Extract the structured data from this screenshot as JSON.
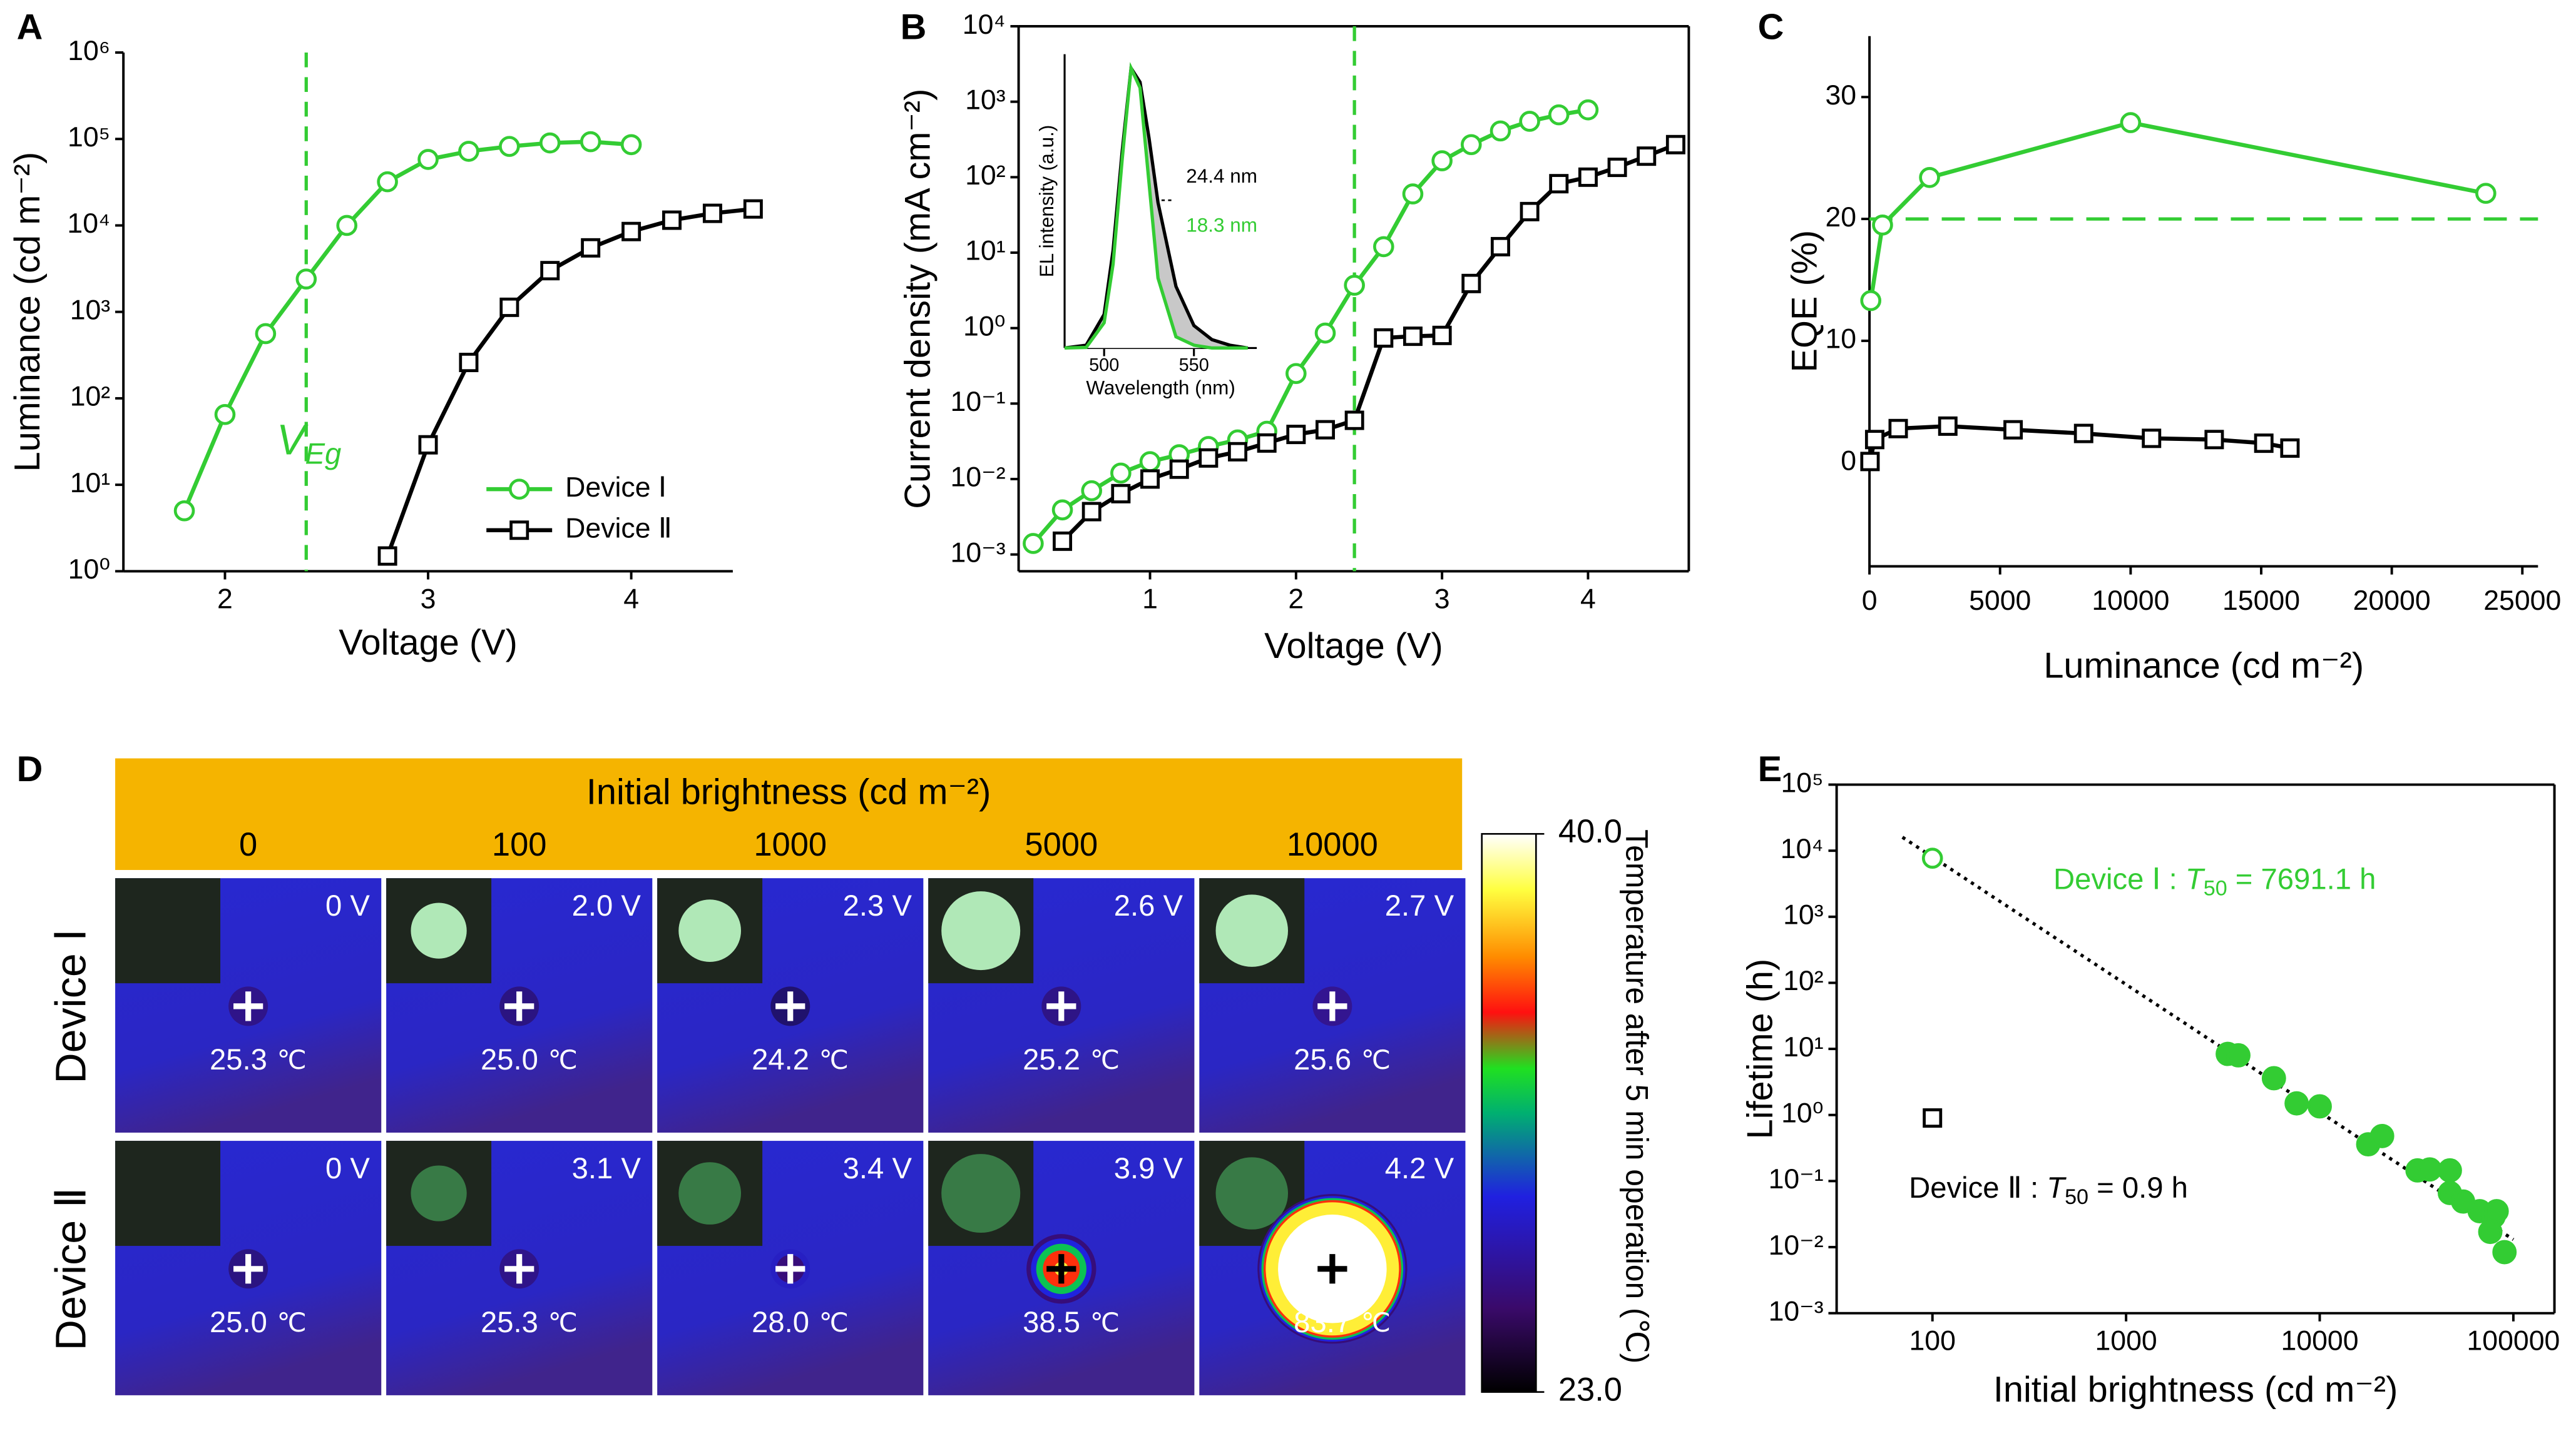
{
  "chart_data": [
    {
      "type": "line",
      "panel_label": "A",
      "xlabel": "Voltage (V)",
      "ylabel": "Luminance (cd m⁻²)",
      "xlim": [
        1.5,
        4.5
      ],
      "ylim": [
        1,
        1000000
      ],
      "ylog": true,
      "frame": false,
      "legend": "lower right",
      "xticks": [
        2,
        3,
        4
      ],
      "yticks": [
        {
          "value": 1,
          "label": "10⁰"
        },
        {
          "value": 10,
          "label": "10¹"
        },
        {
          "value": 100,
          "label": "10²"
        },
        {
          "value": 1000,
          "label": "10³"
        },
        {
          "value": 10000,
          "label": "10⁴"
        },
        {
          "value": 100000,
          "label": "10⁵"
        },
        {
          "value": 1000000,
          "label": "10⁶"
        }
      ],
      "reference_lines": [
        {
          "axis": "x",
          "value": 2.4,
          "color": "#33cc33",
          "label": "V",
          "label_sub": "Eg"
        }
      ],
      "series": [
        {
          "name": "Device Ⅰ",
          "color": "#33cc33",
          "marker": "circle",
          "x": [
            1.8,
            2.0,
            2.2,
            2.4,
            2.6,
            2.8,
            3.0,
            3.2,
            3.4,
            3.6,
            3.8,
            4.0
          ],
          "values": [
            5,
            65,
            560,
            2400,
            10000,
            32000,
            58000,
            72000,
            82000,
            90000,
            93000,
            86000
          ]
        },
        {
          "name": "Device Ⅱ",
          "color": "#000000",
          "marker": "square",
          "x": [
            2.8,
            3.0,
            3.2,
            3.4,
            3.6,
            3.8,
            4.0,
            4.2,
            4.4,
            4.6
          ],
          "values": [
            1.5,
            29,
            260,
            1130,
            3000,
            5500,
            8500,
            11500,
            13800,
            15500
          ]
        }
      ]
    },
    {
      "type": "line",
      "panel_label": "B",
      "xlabel": "Voltage (V)",
      "ylabel": "Current density (mA cm⁻²)",
      "xlim": [
        0.1,
        4.69
      ],
      "ylim": [
        0.0006,
        10000
      ],
      "ylog": true,
      "frame": true,
      "xticks": [
        1,
        2,
        3,
        4
      ],
      "yticks": [
        {
          "value": 0.001,
          "label": "10⁻³"
        },
        {
          "value": 0.01,
          "label": "10⁻²"
        },
        {
          "value": 0.1,
          "label": "10⁻¹"
        },
        {
          "value": 1,
          "label": "10⁰"
        },
        {
          "value": 10,
          "label": "10¹"
        },
        {
          "value": 100,
          "label": "10²"
        },
        {
          "value": 1000,
          "label": "10³"
        },
        {
          "value": 10000,
          "label": "10⁴"
        }
      ],
      "reference_lines": [
        {
          "axis": "x",
          "value": 2.4,
          "color": "#33cc33"
        }
      ],
      "series": [
        {
          "color": "#33cc33",
          "marker": "circle",
          "x": [
            0.2,
            0.4,
            0.6,
            0.8,
            1.0,
            1.2,
            1.4,
            1.6,
            1.8,
            2.0,
            2.2,
            2.4,
            2.6,
            2.8,
            3.0,
            3.2,
            3.4,
            3.6,
            3.8,
            4.0
          ],
          "values": [
            0.0014,
            0.0039,
            0.007,
            0.012,
            0.017,
            0.021,
            0.027,
            0.033,
            0.043,
            0.25,
            0.86,
            3.7,
            12,
            60,
            165,
            270,
            410,
            550,
            670,
            780
          ]
        },
        {
          "color": "#000000",
          "marker": "square",
          "x": [
            0.4,
            0.6,
            0.8,
            1.0,
            1.2,
            1.4,
            1.6,
            1.8,
            2.0,
            2.2,
            2.4,
            2.6,
            2.8,
            3.0,
            3.2,
            3.4,
            3.6,
            3.8,
            4.0,
            4.2,
            4.4,
            4.6
          ],
          "values": [
            0.0015,
            0.0037,
            0.0064,
            0.01,
            0.0135,
            0.019,
            0.023,
            0.03,
            0.039,
            0.045,
            0.06,
            0.74,
            0.78,
            0.8,
            3.9,
            12,
            35,
            82,
            100,
            135,
            190,
            270
          ]
        }
      ]
    },
    {
      "type": "spectrum",
      "xlabel": "Wavelength (nm)",
      "ylabel": "EL intensity (a.u.)",
      "xlim": [
        478,
        585
      ],
      "ylim": [
        0,
        1.05
      ],
      "frame": false,
      "xticks": [
        500,
        550
      ],
      "x": [
        478,
        490,
        500,
        505,
        510,
        515,
        520,
        525,
        530,
        540,
        550,
        560,
        570,
        580
      ],
      "series": [
        {
          "color": "#000000",
          "fill": "#c8c8c8",
          "label": "24.4 nm",
          "values": [
            0,
            0.01,
            0.12,
            0.35,
            0.7,
            1.0,
            0.95,
            0.75,
            0.52,
            0.22,
            0.08,
            0.03,
            0.01,
            0
          ]
        },
        {
          "color": "#33cc33",
          "fill": "#ffffff",
          "label": "18.3 nm",
          "values": [
            0,
            0.002,
            0.09,
            0.3,
            0.67,
            1.0,
            0.93,
            0.59,
            0.25,
            0.04,
            0.01,
            0,
            0,
            0
          ]
        }
      ]
    },
    {
      "type": "line",
      "panel_label": "C",
      "xlabel": "Luminance (cd m⁻²)",
      "ylabel": "EQE (%)",
      "xlim": [
        0,
        25600
      ],
      "ylim": [
        -8.5,
        35
      ],
      "frame": false,
      "xticks": [
        0,
        5000,
        10000,
        15000,
        20000,
        25000
      ],
      "yticks": [
        0,
        10,
        20,
        30
      ],
      "reference_lines": [
        {
          "axis": "y",
          "value": 20,
          "color": "#33cc33"
        }
      ],
      "series": [
        {
          "color": "#33cc33",
          "marker": "circle",
          "x": [
            50,
            500,
            2300,
            10000,
            23600
          ],
          "values": [
            13.3,
            19.5,
            23.4,
            27.9,
            22.1
          ]
        },
        {
          "color": "#000000",
          "marker": "square",
          "x": [
            20,
            200,
            1100,
            3000,
            5500,
            8200,
            10800,
            13200,
            15100,
            16100
          ],
          "values": [
            0.1,
            1.9,
            2.8,
            3.0,
            2.7,
            2.4,
            2.0,
            1.9,
            1.6,
            1.2
          ]
        }
      ]
    },
    {
      "type": "thermal-grid",
      "panel_label": "D",
      "header": "Initial brightness (cd m⁻²)",
      "header_color": "#f5b400",
      "columns": [
        0,
        100,
        1000,
        5000,
        10000
      ],
      "rows": [
        "Device Ⅰ",
        "Device Ⅱ"
      ],
      "voltages": [
        [
          "0 V",
          "2.0 V",
          "2.3 V",
          "2.6 V",
          "2.7 V"
        ],
        [
          "0 V",
          "3.1 V",
          "3.4 V",
          "3.9 V",
          "4.2 V"
        ]
      ],
      "values": [
        [
          25.3,
          25.0,
          24.2,
          25.2,
          25.6
        ],
        [
          25.0,
          25.3,
          28.0,
          38.5,
          83.7
        ]
      ],
      "value_labels": [
        [
          "25.3",
          "25.0",
          "24.2",
          "25.2",
          "25.6"
        ],
        [
          "25.0",
          "25.3",
          "28.0",
          "38.5",
          "83.7"
        ]
      ],
      "temperature_unit": "℃",
      "colorbar": {
        "title": "Temperature after 5 min operation (℃)",
        "lim": [
          23,
          40
        ],
        "ticks": [
          {
            "value": 40,
            "label": "40.0"
          },
          {
            "value": 23,
            "label": "23.0"
          }
        ]
      }
    },
    {
      "type": "scatter",
      "panel_label": "E",
      "xlabel": "Initial brightness (cd m⁻²)",
      "ylabel": "Lifetime (h)",
      "xlog": true,
      "ylog": true,
      "xlim": [
        32,
        163000
      ],
      "ylim": [
        0.001,
        100000
      ],
      "frame": true,
      "xticks": [
        100,
        1000,
        10000,
        100000
      ],
      "yticks": [
        {
          "value": 0.001,
          "label": "10⁻³"
        },
        {
          "value": 0.01,
          "label": "10⁻²"
        },
        {
          "value": 0.1,
          "label": "10⁻¹"
        },
        {
          "value": 1,
          "label": "10⁰"
        },
        {
          "value": 10,
          "label": "10¹"
        },
        {
          "value": 100,
          "label": "10²"
        },
        {
          "value": 1000,
          "label": "10³"
        },
        {
          "value": 10000,
          "label": "10⁴"
        },
        {
          "value": 100000,
          "label": "10⁵"
        }
      ],
      "trend_line": {
        "x": [
          70,
          100000
        ],
        "y": [
          16000,
          0.013
        ]
      },
      "series": [
        {
          "color": "#33cc33",
          "marker": "circle",
          "line": false,
          "x": [
            100
          ],
          "values": [
            7691.1
          ]
        },
        {
          "color": "#33cc33",
          "marker": "circle",
          "filled": true,
          "line": false,
          "x": [
            3350,
            3800,
            5800,
            7600,
            10000,
            17800,
            21000,
            32000,
            37000,
            47000,
            47000,
            55000,
            67000,
            79000,
            82000,
            76000,
            90000
          ],
          "values": [
            8.4,
            8.0,
            3.6,
            1.5,
            1.35,
            0.36,
            0.48,
            0.145,
            0.15,
            0.145,
            0.066,
            0.049,
            0.035,
            0.029,
            0.035,
            0.017,
            0.0084
          ]
        },
        {
          "color": "#000000",
          "marker": "square",
          "line": false,
          "x": [
            100
          ],
          "values": [
            0.9
          ]
        }
      ],
      "annotations": [
        {
          "text": "Device Ⅰ : ",
          "var": "T",
          "sub": "50",
          "rest": " = 7691.1 h",
          "color": "#33cc33"
        },
        {
          "text": "Device Ⅱ :  ",
          "var": "T",
          "sub": "50",
          "rest": " = 0.9 h",
          "color": "#000000"
        }
      ]
    }
  ]
}
